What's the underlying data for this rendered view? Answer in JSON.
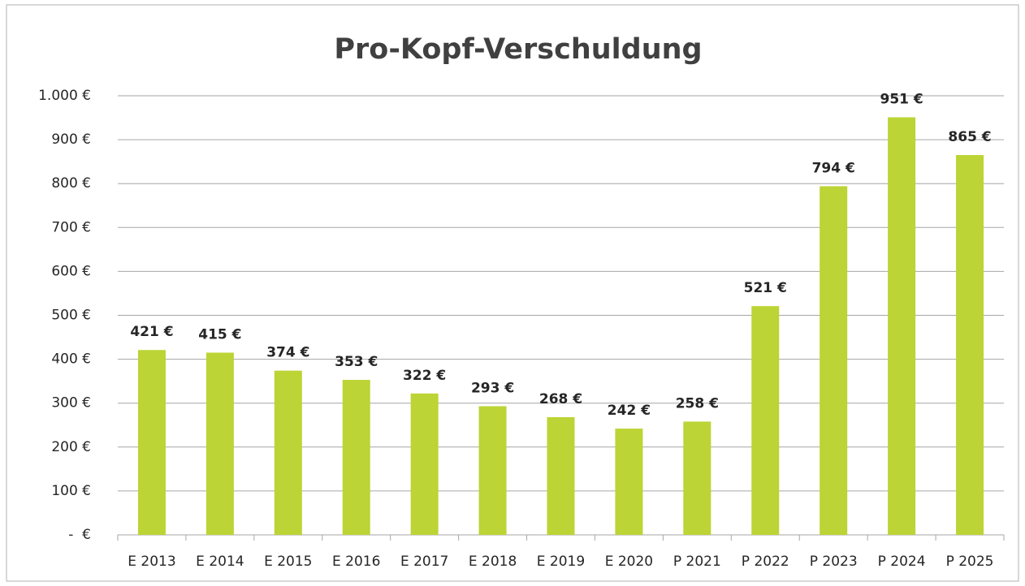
{
  "chart_data": {
    "type": "bar",
    "title": "Pro-Kopf-Verschuldung",
    "categories": [
      "E 2013",
      "E 2014",
      "E 2015",
      "E 2016",
      "E 2017",
      "E 2018",
      "E 2019",
      "E 2020",
      "P 2021",
      "P 2022",
      "P 2023",
      "P 2024",
      "P 2025"
    ],
    "values": [
      421,
      415,
      374,
      353,
      322,
      293,
      268,
      242,
      258,
      521,
      794,
      951,
      865
    ],
    "value_labels": [
      "421 €",
      "415 €",
      "374 €",
      "353 €",
      "322 €",
      "293 €",
      "268 €",
      "242 €",
      "258 €",
      "521 €",
      "794 €",
      "951 €",
      "865 €"
    ],
    "color": "#bcd435",
    "ylim": [
      0,
      1000
    ],
    "yticks": [
      {
        "value": 0,
        "label": "-  €"
      },
      {
        "value": 100,
        "label": "100 €"
      },
      {
        "value": 200,
        "label": "200 €"
      },
      {
        "value": 300,
        "label": "300 €"
      },
      {
        "value": 400,
        "label": "400 €"
      },
      {
        "value": 500,
        "label": "500 €"
      },
      {
        "value": 600,
        "label": "600 €"
      },
      {
        "value": 700,
        "label": "700 €"
      },
      {
        "value": 800,
        "label": "800 €"
      },
      {
        "value": 900,
        "label": "900 €"
      },
      {
        "value": 1000,
        "label": "1.000 €"
      }
    ],
    "grid": true
  }
}
